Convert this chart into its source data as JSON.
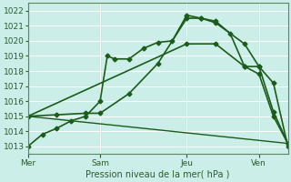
{
  "xlabel": "Pression niveau de la mer( hPa )",
  "background_color": "#cceee8",
  "grid_color": "#b0d8d0",
  "line_color": "#1a5c1a",
  "ylim": [
    1012.5,
    1022.5
  ],
  "yticks": [
    1013,
    1014,
    1015,
    1016,
    1017,
    1018,
    1019,
    1020,
    1021,
    1022
  ],
  "xlim": [
    0,
    18
  ],
  "xtick_positions": [
    0,
    5,
    11,
    16
  ],
  "xtick_labels": [
    "Mer",
    "Sam",
    "Jeu",
    "Ven"
  ],
  "vlines": [
    0,
    5,
    11,
    16
  ],
  "lines": [
    {
      "x": [
        0,
        1,
        2,
        3,
        4,
        5,
        5.5,
        6,
        7,
        8,
        9,
        10,
        11,
        12,
        13,
        14,
        15,
        16,
        17,
        18
      ],
      "y": [
        1013.0,
        1013.8,
        1014.2,
        1014.7,
        1015.0,
        1016.0,
        1019.0,
        1018.8,
        1018.8,
        1019.5,
        1019.9,
        1020.0,
        1021.7,
        1021.5,
        1021.3,
        1020.5,
        1018.3,
        1018.3,
        1017.2,
        1013.0
      ],
      "markers": true,
      "linewidth": 1.2,
      "markersize": 2.5
    },
    {
      "x": [
        0,
        2,
        4,
        5,
        7,
        9,
        11,
        12,
        13,
        15,
        16,
        17,
        18
      ],
      "y": [
        1015.0,
        1015.1,
        1015.2,
        1015.2,
        1016.5,
        1018.5,
        1021.5,
        1021.5,
        1021.2,
        1019.8,
        1018.3,
        1015.3,
        1013.2
      ],
      "markers": true,
      "linewidth": 1.2,
      "markersize": 2.5
    },
    {
      "x": [
        0,
        11,
        13,
        15,
        16,
        17,
        18
      ],
      "y": [
        1015.0,
        1019.8,
        1019.8,
        1018.3,
        1017.8,
        1015.0,
        1013.2
      ],
      "markers": true,
      "linewidth": 1.2,
      "markersize": 2.5
    },
    {
      "x": [
        0,
        18
      ],
      "y": [
        1015.0,
        1013.2
      ],
      "markers": false,
      "linewidth": 1.0,
      "markersize": 0
    }
  ]
}
